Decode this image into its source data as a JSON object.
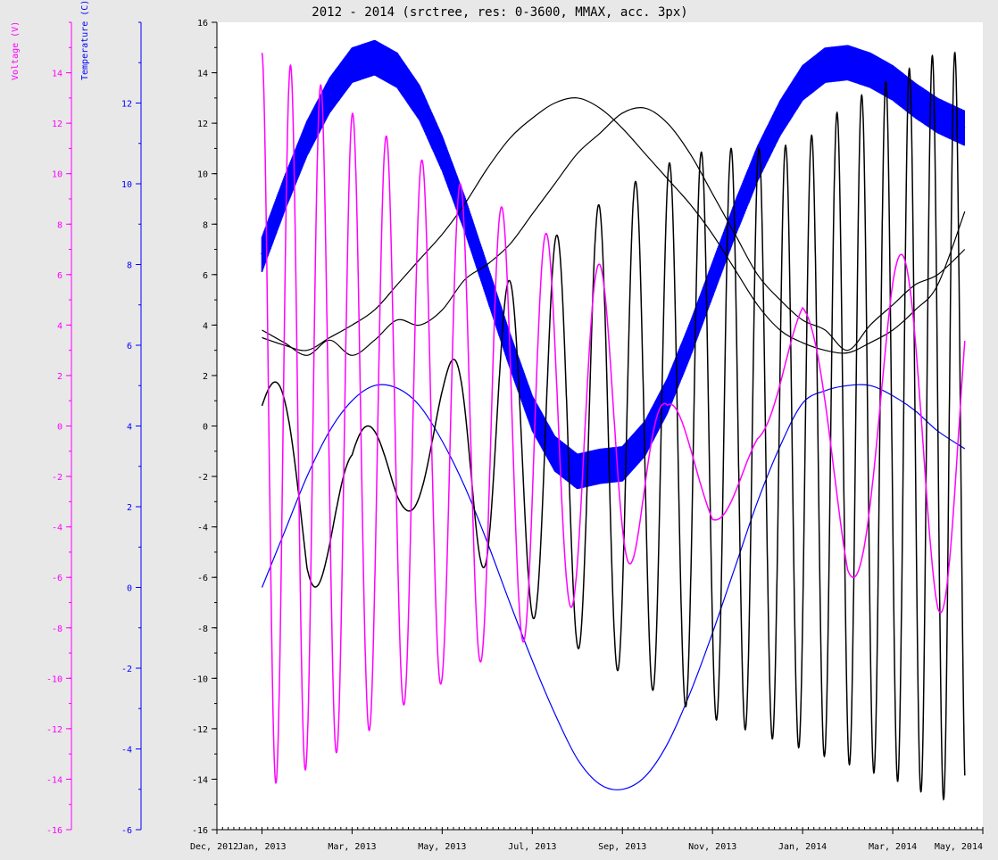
{
  "chart_data": {
    "type": "line",
    "title": "2012 - 2014 (srctree, res: 0-3600, MMAX, acc. 3px)",
    "x_axis": {
      "tick_labels": [
        "Dec, 2012",
        "Jan, 2013",
        "Mar, 2013",
        "May, 2013",
        "Jul, 2013",
        "Sep, 2013",
        "Nov, 2013",
        "Jan, 2014",
        "Mar, 2014",
        "May, 2014"
      ],
      "tick_positions": [
        0,
        1,
        3,
        5,
        7,
        9,
        11,
        13,
        15,
        17
      ],
      "xlim": [
        0,
        17
      ],
      "unit": "months since Dec 2012"
    },
    "y_axes": [
      {
        "id": "main",
        "ylim": [
          -16,
          16
        ],
        "ticks": [
          -16,
          -14,
          -12,
          -10,
          -8,
          -6,
          -4,
          -2,
          0,
          2,
          4,
          6,
          8,
          10,
          12,
          14,
          16
        ],
        "title": "",
        "color": "#000000"
      },
      {
        "id": "voltage",
        "ylim": [
          -16,
          16
        ],
        "ticks": [
          -16,
          -14,
          -12,
          -10,
          -8,
          -6,
          -4,
          -2,
          0,
          2,
          4,
          6,
          8,
          10,
          12,
          14
        ],
        "title": "Voltage (V)",
        "color": "#ff00ff"
      },
      {
        "id": "temperature",
        "ylim": [
          -6,
          14
        ],
        "ticks": [
          -6,
          -4,
          -2,
          0,
          2,
          4,
          6,
          8,
          10,
          12
        ],
        "title": "Temperature (C)",
        "color": "#0000ff"
      }
    ],
    "grid": false,
    "background": "#ffffff",
    "series": [
      {
        "axis": "main",
        "color": "#0000ff",
        "style": "thick-band",
        "x": [
          1.0,
          1.5,
          2.0,
          2.5,
          3.0,
          3.5,
          4.0,
          4.5,
          5.0,
          5.5,
          6.0,
          6.5,
          7.0,
          7.5,
          8.0,
          8.5,
          9.0,
          9.5,
          10.0,
          10.5,
          11.0,
          11.5,
          12.0,
          12.5,
          13.0,
          13.5,
          14.0,
          14.5,
          15.0,
          15.5,
          16.0,
          16.6
        ],
        "values": [
          6.8,
          9.2,
          11.4,
          13.1,
          14.3,
          14.6,
          14.1,
          12.8,
          10.8,
          8.4,
          5.7,
          3.0,
          0.5,
          -1.1,
          -1.8,
          -1.6,
          -1.5,
          -0.5,
          1.2,
          3.4,
          5.8,
          8.2,
          10.4,
          12.2,
          13.6,
          14.3,
          14.4,
          14.1,
          13.6,
          12.9,
          12.3,
          11.8
        ],
        "band": 0.7
      },
      {
        "axis": "main",
        "color": "#0000ff",
        "style": "thin",
        "x": [
          1.0,
          1.5,
          2.0,
          2.5,
          3.0,
          3.5,
          4.0,
          4.5,
          5.0,
          5.5,
          6.0,
          6.5,
          7.0,
          7.5,
          8.0,
          8.5,
          9.0,
          9.5,
          10.0,
          10.5,
          11.0,
          11.5,
          12.0,
          12.5,
          13.0,
          13.5,
          14.0,
          14.5,
          15.0,
          15.5,
          16.0,
          16.6
        ],
        "values": [
          -6.4,
          -4.2,
          -2.0,
          -0.2,
          1.0,
          1.6,
          1.5,
          0.8,
          -0.6,
          -2.4,
          -4.6,
          -7.0,
          -9.3,
          -11.4,
          -13.2,
          -14.2,
          -14.4,
          -13.9,
          -12.6,
          -10.6,
          -8.2,
          -5.6,
          -3.0,
          -0.8,
          0.9,
          1.4,
          1.6,
          1.6,
          1.2,
          0.6,
          -0.2,
          -0.9
        ]
      },
      {
        "axis": "main",
        "color": "#000000",
        "style": "thin",
        "x": [
          1.0,
          1.5,
          2.0,
          2.5,
          3.0,
          3.5,
          4.0,
          4.5,
          5.0,
          5.5,
          6.0,
          6.5,
          7.0,
          7.5,
          8.0,
          8.5,
          9.0,
          9.5,
          10.0,
          10.5,
          11.0,
          11.5,
          12.0,
          12.5,
          13.0,
          13.5,
          14.0,
          14.5,
          15.0,
          15.5,
          16.0,
          16.6
        ],
        "values": [
          3.5,
          3.2,
          3.0,
          3.5,
          4.0,
          4.6,
          5.6,
          6.6,
          7.6,
          8.8,
          10.2,
          11.4,
          12.2,
          12.8,
          13.0,
          12.6,
          11.8,
          10.8,
          9.8,
          8.8,
          7.6,
          6.2,
          4.8,
          3.8,
          3.3,
          3.0,
          2.9,
          3.3,
          3.8,
          4.6,
          5.6,
          8.5
        ]
      },
      {
        "axis": "main",
        "color": "#000000",
        "style": "thin",
        "x": [
          1.0,
          1.5,
          2.0,
          2.5,
          3.0,
          3.5,
          4.0,
          4.5,
          5.0,
          5.5,
          6.0,
          6.5,
          7.0,
          7.5,
          8.0,
          8.5,
          9.0,
          9.5,
          10.0,
          10.5,
          11.0,
          11.5,
          12.0,
          12.5,
          13.0,
          13.5,
          14.0,
          14.5,
          15.0,
          15.5,
          16.0,
          16.6
        ],
        "values": [
          3.8,
          3.3,
          2.8,
          3.4,
          2.8,
          3.4,
          4.2,
          4.0,
          4.6,
          5.8,
          6.4,
          7.2,
          8.4,
          9.6,
          10.8,
          11.6,
          12.4,
          12.6,
          12.0,
          10.8,
          9.2,
          7.6,
          6.0,
          5.0,
          4.2,
          3.8,
          3.0,
          4.0,
          4.8,
          5.6,
          6.0,
          7.0
        ]
      },
      {
        "axis": "main",
        "color": "#000000",
        "style": "oscillating",
        "x": [
          1.0,
          16.6
        ],
        "env_upper": [
          [
            1.0,
            0.8
          ],
          [
            2.0,
            6.0
          ],
          [
            3.0,
            0.0
          ],
          [
            4.0,
            0.0
          ],
          [
            5.0,
            2.0
          ],
          [
            6.0,
            4.8
          ],
          [
            7.0,
            6.8
          ],
          [
            8.0,
            8.2
          ],
          [
            9.0,
            9.4
          ],
          [
            10.0,
            10.4
          ],
          [
            11.0,
            11.0
          ],
          [
            12.0,
            11.0
          ],
          [
            13.0,
            11.2
          ],
          [
            14.0,
            12.8
          ],
          [
            15.0,
            13.8
          ],
          [
            16.0,
            14.8
          ]
        ],
        "env_lower": [
          [
            1.0,
            -0.4
          ],
          [
            2.0,
            -6.8
          ],
          [
            3.0,
            -4.8
          ],
          [
            4.0,
            -4.0
          ],
          [
            5.0,
            -2.0
          ],
          [
            6.0,
            -6.0
          ],
          [
            7.0,
            -7.6
          ],
          [
            8.0,
            -8.8
          ],
          [
            9.0,
            -9.8
          ],
          [
            10.0,
            -10.8
          ],
          [
            11.0,
            -11.6
          ],
          [
            12.0,
            -12.2
          ],
          [
            13.0,
            -12.8
          ],
          [
            14.0,
            -13.4
          ],
          [
            15.0,
            -14.0
          ],
          [
            16.0,
            -14.8
          ]
        ],
        "periods": [
          [
            1.0,
            2.6
          ],
          [
            4.0,
            2.0
          ],
          [
            6.0,
            1.2
          ],
          [
            9.0,
            0.8
          ],
          [
            12.0,
            0.6
          ],
          [
            16.0,
            0.5
          ]
        ]
      },
      {
        "axis": "main",
        "color": "#ff00ff",
        "style": "oscillating",
        "x": [
          1.0,
          16.6
        ],
        "env_upper": [
          [
            1.0,
            14.8
          ],
          [
            2.0,
            14.0
          ],
          [
            3.0,
            12.4
          ],
          [
            4.0,
            11.2
          ],
          [
            5.0,
            10.0
          ],
          [
            6.0,
            9.0
          ],
          [
            7.0,
            8.0
          ],
          [
            8.0,
            6.8
          ],
          [
            9.0,
            6.0
          ],
          [
            10.0,
            1.0
          ],
          [
            11.0,
            -0.5
          ],
          [
            12.0,
            -0.5
          ],
          [
            13.0,
            4.8
          ],
          [
            14.0,
            4.8
          ],
          [
            15.0,
            6.8
          ],
          [
            16.0,
            6.8
          ]
        ],
        "env_lower": [
          [
            1.0,
            -14.4
          ],
          [
            2.0,
            -13.6
          ],
          [
            3.0,
            -12.6
          ],
          [
            4.0,
            -11.2
          ],
          [
            5.0,
            -10.2
          ],
          [
            6.0,
            -9.2
          ],
          [
            7.0,
            -8.4
          ],
          [
            8.0,
            -7.0
          ],
          [
            9.0,
            -5.6
          ],
          [
            10.0,
            -4.8
          ],
          [
            11.0,
            -4.8
          ],
          [
            12.0,
            -0.5
          ],
          [
            13.0,
            -0.5
          ],
          [
            14.0,
            -6.0
          ],
          [
            15.0,
            -6.0
          ],
          [
            16.0,
            -7.4
          ]
        ],
        "periods": [
          [
            1.0,
            0.62
          ],
          [
            4.0,
            0.78
          ],
          [
            7.0,
            1.0
          ],
          [
            9.0,
            1.4
          ],
          [
            11.0,
            3.0
          ],
          [
            14.0,
            2.4
          ],
          [
            16.0,
            1.6
          ]
        ]
      }
    ]
  }
}
